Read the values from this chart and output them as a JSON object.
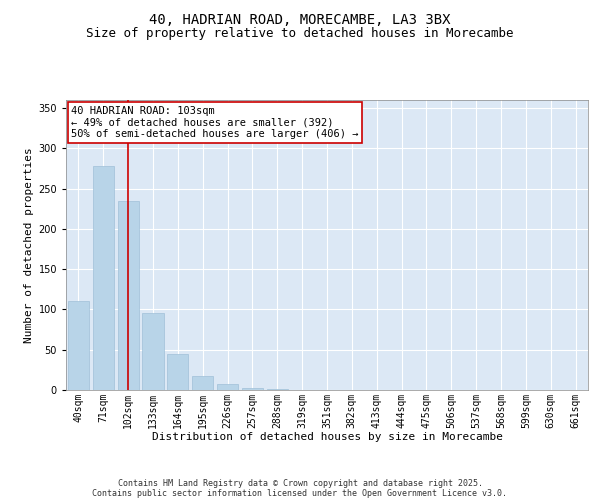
{
  "title_line1": "40, HADRIAN ROAD, MORECAMBE, LA3 3BX",
  "title_line2": "Size of property relative to detached houses in Morecambe",
  "xlabel": "Distribution of detached houses by size in Morecambe",
  "ylabel": "Number of detached properties",
  "categories": [
    "40sqm",
    "71sqm",
    "102sqm",
    "133sqm",
    "164sqm",
    "195sqm",
    "226sqm",
    "257sqm",
    "288sqm",
    "319sqm",
    "351sqm",
    "382sqm",
    "413sqm",
    "444sqm",
    "475sqm",
    "506sqm",
    "537sqm",
    "568sqm",
    "599sqm",
    "630sqm",
    "661sqm"
  ],
  "values": [
    110,
    278,
    235,
    95,
    45,
    18,
    8,
    3,
    1,
    0,
    0,
    0,
    0,
    0,
    0,
    0,
    0,
    0,
    0,
    0,
    0
  ],
  "bar_color": "#b8d4e8",
  "bar_edge_color": "#a0c0d8",
  "highlight_index": 2,
  "highlight_line_color": "#cc0000",
  "annotation_text": "40 HADRIAN ROAD: 103sqm\n← 49% of detached houses are smaller (392)\n50% of semi-detached houses are larger (406) →",
  "annotation_box_color": "#ffffff",
  "annotation_box_edge_color": "#cc0000",
  "ylim": [
    0,
    360
  ],
  "yticks": [
    0,
    50,
    100,
    150,
    200,
    250,
    300,
    350
  ],
  "background_color": "#dce8f5",
  "grid_color": "#ffffff",
  "fig_background": "#ffffff",
  "footer_line1": "Contains HM Land Registry data © Crown copyright and database right 2025.",
  "footer_line2": "Contains public sector information licensed under the Open Government Licence v3.0.",
  "title_fontsize": 10,
  "subtitle_fontsize": 9,
  "axis_label_fontsize": 8,
  "tick_fontsize": 7,
  "annotation_fontsize": 7.5,
  "footer_fontsize": 6
}
